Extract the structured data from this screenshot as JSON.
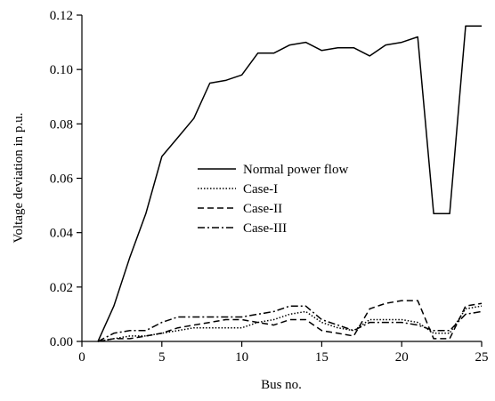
{
  "chart_data": {
    "type": "line",
    "title": "",
    "xlabel": "Bus no.",
    "ylabel": "Voltage deviation in p.u.",
    "xlim": [
      0,
      25
    ],
    "ylim": [
      0,
      0.12
    ],
    "xticks": [
      0,
      5,
      10,
      15,
      20,
      25
    ],
    "xtick_labels": [
      "0",
      "5",
      "10",
      "15",
      "20",
      "25"
    ],
    "yticks": [
      0,
      0.02,
      0.04,
      0.06,
      0.08,
      0.1,
      0.12
    ],
    "ytick_labels": [
      "0.00",
      "0.02",
      "0.04",
      "0.06",
      "0.08",
      "0.10",
      "0.12"
    ],
    "grid": false,
    "legend_position": "center",
    "x": [
      1,
      2,
      3,
      4,
      5,
      6,
      7,
      8,
      9,
      10,
      11,
      12,
      13,
      14,
      15,
      16,
      17,
      18,
      19,
      20,
      21,
      22,
      23,
      24,
      25
    ],
    "series": [
      {
        "name": "Normal power flow",
        "style": "solid",
        "values": [
          0,
          0.013,
          0.031,
          0.047,
          0.068,
          0.075,
          0.082,
          0.095,
          0.096,
          0.098,
          0.106,
          0.106,
          0.109,
          0.11,
          0.107,
          0.108,
          0.108,
          0.105,
          0.109,
          0.11,
          0.112,
          0.047,
          0.047,
          0.116,
          0.116
        ]
      },
      {
        "name": "Case-I",
        "style": "dotted",
        "values": [
          0,
          0.001,
          0.002,
          0.002,
          0.003,
          0.004,
          0.005,
          0.005,
          0.005,
          0.005,
          0.007,
          0.008,
          0.01,
          0.011,
          0.007,
          0.005,
          0.004,
          0.008,
          0.008,
          0.008,
          0.007,
          0.003,
          0.003,
          0.012,
          0.013
        ]
      },
      {
        "name": "Case-II",
        "style": "dashed",
        "values": [
          0,
          0.001,
          0.001,
          0.002,
          0.003,
          0.005,
          0.006,
          0.007,
          0.008,
          0.008,
          0.007,
          0.006,
          0.008,
          0.008,
          0.004,
          0.003,
          0.002,
          0.012,
          0.014,
          0.015,
          0.015,
          0.001,
          0.001,
          0.013,
          0.014
        ]
      },
      {
        "name": "Case-III",
        "style": "dashdot",
        "values": [
          0,
          0.003,
          0.004,
          0.004,
          0.007,
          0.009,
          0.009,
          0.009,
          0.009,
          0.009,
          0.01,
          0.011,
          0.013,
          0.013,
          0.008,
          0.006,
          0.004,
          0.007,
          0.007,
          0.007,
          0.006,
          0.004,
          0.004,
          0.01,
          0.011
        ]
      }
    ]
  }
}
